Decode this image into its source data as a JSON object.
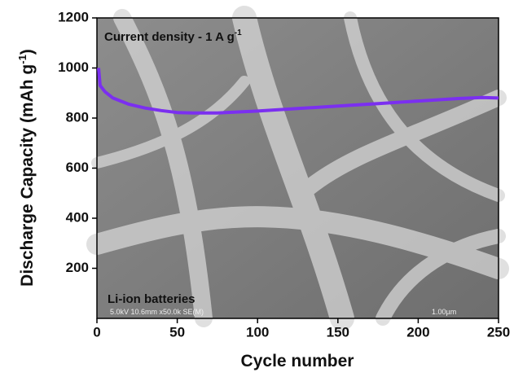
{
  "chart_data": {
    "type": "line",
    "x_label": "Cycle number",
    "y_label": [
      "Discharge Capacity (mAh g",
      "-1",
      ")"
    ],
    "annotations": {
      "condition": [
        "Current density - 1 A g",
        "-1"
      ],
      "battery": "Li-ion batteries",
      "sem_info": "5.0kV 10.6mm x50.0k SE(M)",
      "scale_bar": "1.00µm"
    },
    "x": [
      1,
      2,
      5,
      10,
      20,
      30,
      40,
      50,
      60,
      75,
      100,
      125,
      150,
      175,
      200,
      225,
      240,
      250
    ],
    "values": [
      1000,
      930,
      905,
      880,
      855,
      840,
      830,
      822,
      820,
      820,
      828,
      838,
      848,
      858,
      868,
      878,
      882,
      880
    ],
    "color": "#7b2ff0",
    "xlim": [
      0,
      250
    ],
    "xticks": [
      0,
      50,
      100,
      150,
      200,
      250
    ],
    "ylim": [
      0,
      1200
    ],
    "yticks": [
      200,
      400,
      600,
      800,
      1000,
      1200
    ]
  }
}
